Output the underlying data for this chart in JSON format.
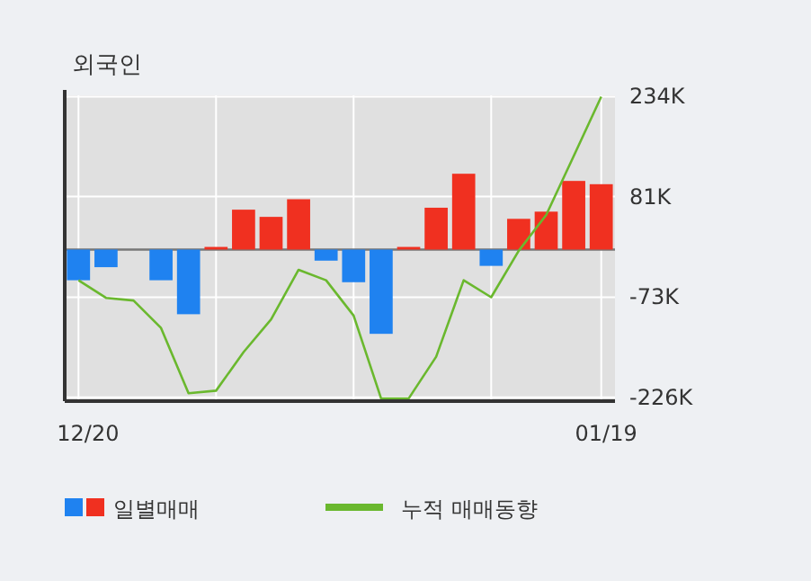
{
  "chart_data": {
    "type": "bar",
    "title": "외국인",
    "categories": [
      "12/20",
      null,
      null,
      null,
      null,
      null,
      null,
      null,
      null,
      null,
      null,
      null,
      null,
      null,
      null,
      null,
      null,
      null,
      null,
      "01/19"
    ],
    "series": [
      {
        "name": "일별매매",
        "colors": [
          "#1f82f0",
          "#1f82f0",
          "#1f82f0",
          "#1f82f0",
          "#1f82f0",
          "#f03020",
          "#f03020",
          "#f03020",
          "#f03020",
          "#1f82f0",
          "#1f82f0",
          "#1f82f0",
          "#f03020",
          "#f03020",
          "#f03020",
          "#1f82f0",
          "#f03020",
          "#f03020",
          "#f03020",
          "#f03020"
        ],
        "values": [
          -47,
          -27,
          0,
          -47,
          -99,
          4,
          61,
          50,
          77,
          -17,
          -50,
          -129,
          4,
          64,
          116,
          -25,
          47,
          58,
          105,
          100
        ]
      },
      {
        "name": "누적 매매동향",
        "type": "line",
        "color": "#6ab82e",
        "values": [
          -47,
          -74,
          -78,
          -120,
          -220,
          -216,
          -157,
          -107,
          -31,
          -47,
          -101,
          -228,
          -228,
          -164,
          -47,
          -73,
          -2,
          53,
          143,
          234
        ]
      }
    ],
    "ylim": [
      -232,
      236
    ],
    "yticks": [
      {
        "value": 234,
        "label": "234K"
      },
      {
        "value": 81,
        "label": "81K"
      },
      {
        "value": -73,
        "label": "-73K"
      },
      {
        "value": -226,
        "label": "-226K"
      }
    ],
    "grid": true,
    "legend": "bottom"
  }
}
